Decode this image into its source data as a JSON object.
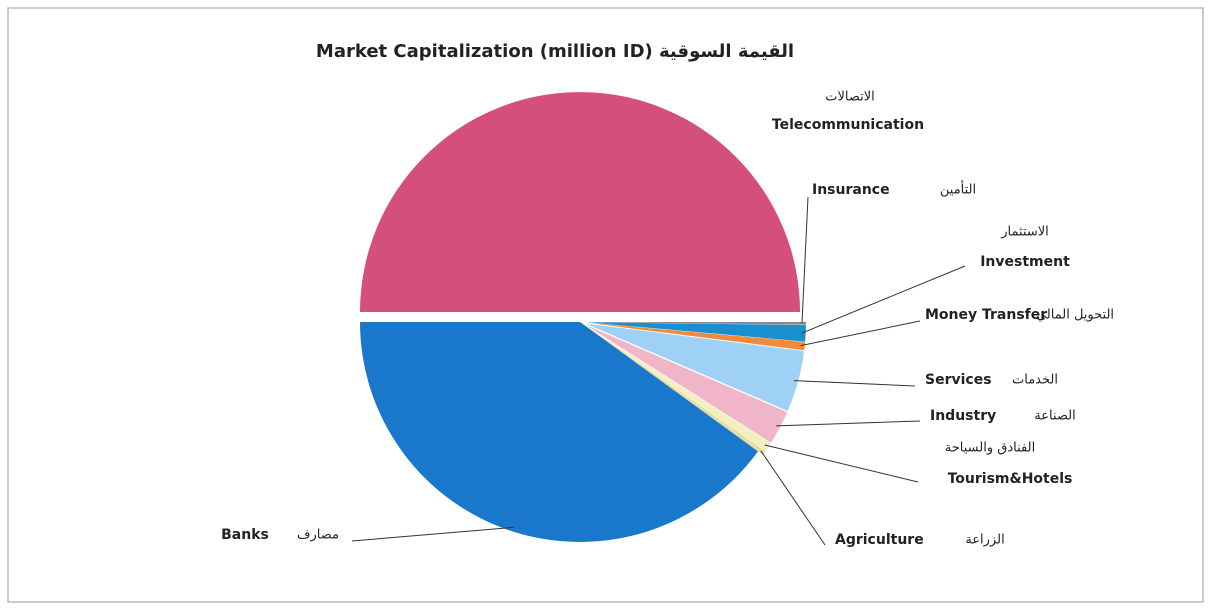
{
  "chart_data": {
    "type": "pie",
    "title": "Market Capitalization (million ID) القيمة السوقية",
    "categories": [
      "Telecommunication",
      "Insurance",
      "Investment",
      "Money Transfer",
      "Services",
      "Industry",
      "Tourism&Hotels",
      "Agriculture",
      "Banks"
    ],
    "categories_ar": [
      "الاتصالات",
      "التأمين",
      "الاستثمار",
      "التحويل المالي",
      "الخدمات",
      "الصناعة",
      "الفنادق والسياحة",
      "الزراعة",
      "مصارف"
    ],
    "values": [
      50,
      0.2,
      1.2,
      0.6,
      4.5,
      2.5,
      0.7,
      0.3,
      40
    ],
    "colors": [
      "#d4507a",
      "#8a8a8a",
      "#1a8fd0",
      "#f28a3a",
      "#9fd0f5",
      "#f0b5c8",
      "#f4efc0",
      "#e6dca0",
      "#1a78cc"
    ]
  }
}
